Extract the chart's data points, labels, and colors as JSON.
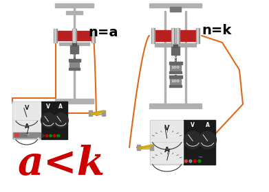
{
  "background_color": "#ffffff",
  "label_left": "n=a",
  "label_right": "n=k",
  "conclusion": "a<k",
  "conclusion_color": "#cc0000",
  "conclusion_fontsize": 42,
  "label_fontsize": 14,
  "stand_color": "#b0b0b0",
  "coil_body_color": "#bb2020",
  "coil_end_color": "#909090",
  "wire_color": "#e06818",
  "weight_color": "#888888",
  "meter_bg_dark": "#1a1a1a",
  "meter_bg_light": "#e8e8e8",
  "switch_color": "#ddaa00",
  "chain_color": "#606060"
}
